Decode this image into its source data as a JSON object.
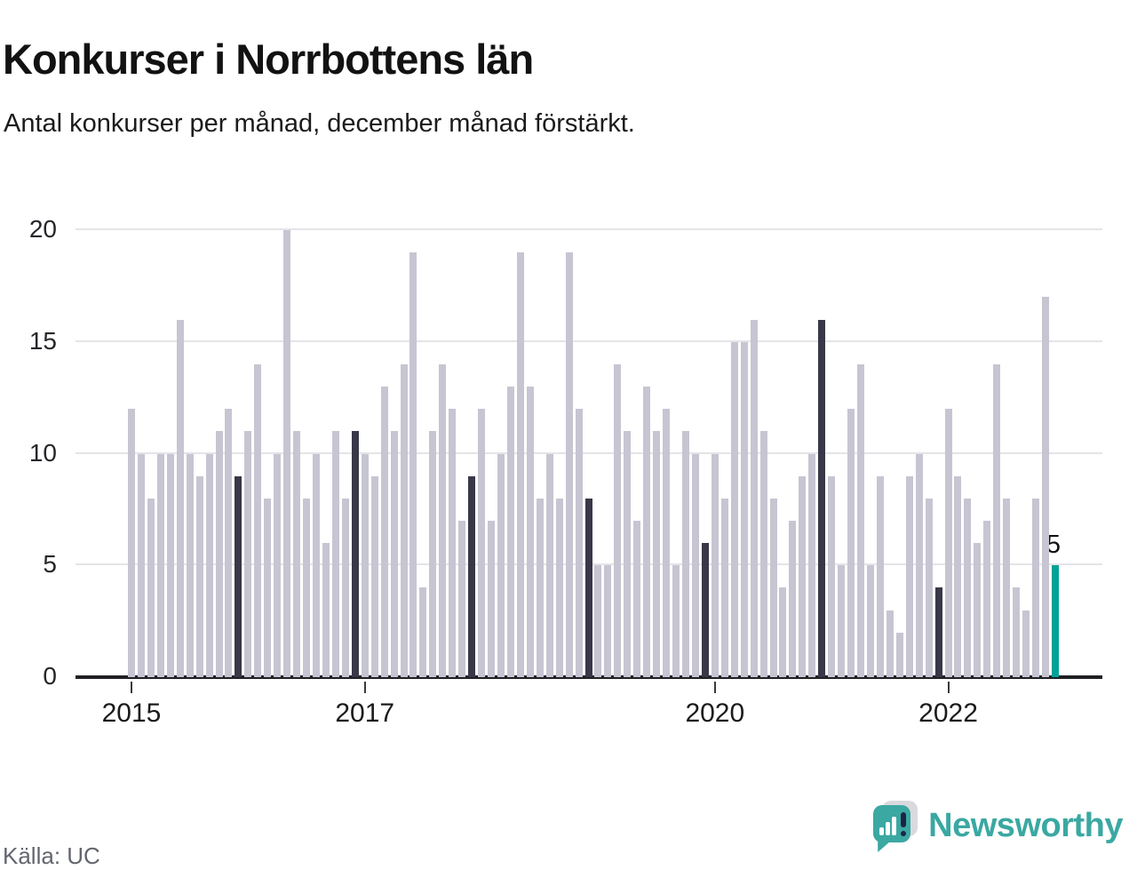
{
  "header": {
    "title": "Konkurser i Norrbottens län",
    "subtitle": "Antal konkurser per månad, december månad förstärkt."
  },
  "annotation": {
    "latest_value_label": "5"
  },
  "footer": {
    "source": "Källa: UC",
    "brand": "Newsworthy"
  },
  "colors": {
    "bar_normal": "#c7c5d2",
    "bar_december": "#383848",
    "bar_latest": "#00a298",
    "gridline": "#e4e4e8",
    "axis": "#202024",
    "brand_teal": "#3ba8a2"
  },
  "chart_data": {
    "type": "bar",
    "title": "Konkurser i Norrbottens län",
    "subtitle": "Antal konkurser per månad, december månad förstärkt.",
    "xlabel": "",
    "ylabel": "Antal konkurser",
    "ylim": [
      0,
      20
    ],
    "yticks": [
      0,
      5,
      10,
      15,
      20
    ],
    "grid": "horizontal",
    "legend": "none",
    "highlight_rules": "December bars dark navy; latest month (December 2022) teal with value label 5",
    "xticks": [
      {
        "month_index": 0,
        "label": "2015"
      },
      {
        "month_index": 24,
        "label": "2017"
      },
      {
        "month_index": 60,
        "label": "2020"
      },
      {
        "month_index": 84,
        "label": "2022"
      }
    ],
    "start_month": "2015-01",
    "series_by_year": [
      {
        "year": 2015,
        "values": [
          12,
          10,
          8,
          10,
          10,
          16,
          10,
          9,
          10,
          11,
          12,
          9
        ]
      },
      {
        "year": 2016,
        "values": [
          11,
          14,
          8,
          10,
          20,
          11,
          8,
          10,
          6,
          11,
          8,
          11
        ]
      },
      {
        "year": 2017,
        "values": [
          10,
          9,
          13,
          11,
          14,
          19,
          4,
          11,
          14,
          12,
          7,
          9
        ]
      },
      {
        "year": 2018,
        "values": [
          12,
          7,
          10,
          13,
          19,
          13,
          8,
          10,
          8,
          19,
          12,
          8
        ]
      },
      {
        "year": 2019,
        "values": [
          5,
          5,
          14,
          11,
          7,
          13,
          11,
          12,
          5,
          11,
          10,
          6
        ]
      },
      {
        "year": 2020,
        "values": [
          10,
          8,
          15,
          15,
          16,
          11,
          8,
          4,
          7,
          9,
          10,
          16
        ]
      },
      {
        "year": 2021,
        "values": [
          9,
          5,
          12,
          14,
          5,
          9,
          3,
          2,
          9,
          10,
          8,
          4
        ]
      },
      {
        "year": 2022,
        "values": [
          12,
          9,
          8,
          6,
          7,
          14,
          8,
          4,
          3,
          8,
          17,
          5
        ]
      }
    ],
    "latest": {
      "month": "2022-12",
      "value": 5
    }
  }
}
